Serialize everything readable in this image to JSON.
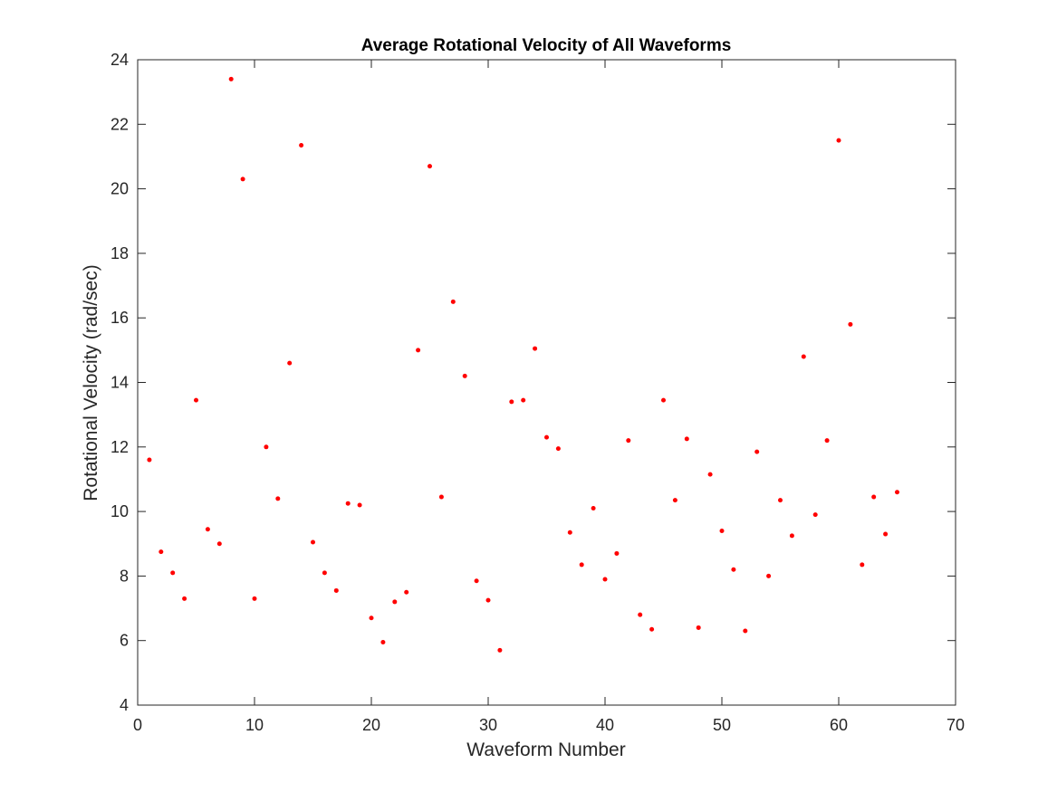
{
  "chart_data": {
    "type": "scatter",
    "title": "Average Rotational Velocity of All Waveforms",
    "xlabel": "Waveform Number",
    "ylabel": "Rotational Velocity (rad/sec)",
    "xlim": [
      0,
      70
    ],
    "ylim": [
      4,
      24
    ],
    "xticks": [
      "0",
      "10",
      "20",
      "30",
      "40",
      "50",
      "60",
      "70"
    ],
    "yticks": [
      "4",
      "6",
      "8",
      "10",
      "12",
      "14",
      "16",
      "18",
      "20",
      "22",
      "24"
    ],
    "grid": false,
    "marker_color": "#ff0000",
    "axis_color": "#262626",
    "series": [
      {
        "x": [
          1,
          2,
          3,
          4,
          5,
          6,
          7,
          8,
          9,
          10,
          11,
          12,
          13,
          14,
          15,
          16,
          17,
          18,
          19,
          20,
          21,
          22,
          23,
          24,
          25,
          26,
          27,
          28,
          29,
          30,
          31,
          32,
          33,
          34,
          35,
          36,
          37,
          38,
          39,
          40,
          41,
          42,
          43,
          44,
          45,
          46,
          47,
          48,
          49,
          50,
          51,
          52,
          53,
          54,
          55,
          56,
          57,
          58,
          59,
          60,
          61,
          62,
          63,
          64,
          65
        ],
        "y": [
          11.6,
          8.75,
          8.1,
          7.3,
          13.45,
          9.45,
          9.0,
          23.4,
          20.3,
          7.3,
          12.0,
          10.4,
          14.6,
          21.35,
          9.05,
          8.1,
          7.55,
          10.25,
          10.2,
          6.7,
          5.95,
          7.2,
          7.5,
          15.0,
          20.7,
          10.45,
          16.5,
          14.2,
          7.85,
          7.25,
          5.7,
          13.4,
          13.45,
          15.05,
          12.3,
          11.95,
          9.35,
          8.35,
          10.1,
          7.9,
          8.7,
          12.2,
          6.8,
          6.35,
          13.45,
          10.35,
          12.25,
          6.4,
          11.15,
          9.4,
          8.2,
          6.3,
          11.85,
          8.0,
          10.35,
          9.25,
          14.8,
          9.9,
          12.2,
          21.5,
          15.8,
          8.35,
          10.45,
          9.3,
          10.6
        ]
      }
    ]
  }
}
